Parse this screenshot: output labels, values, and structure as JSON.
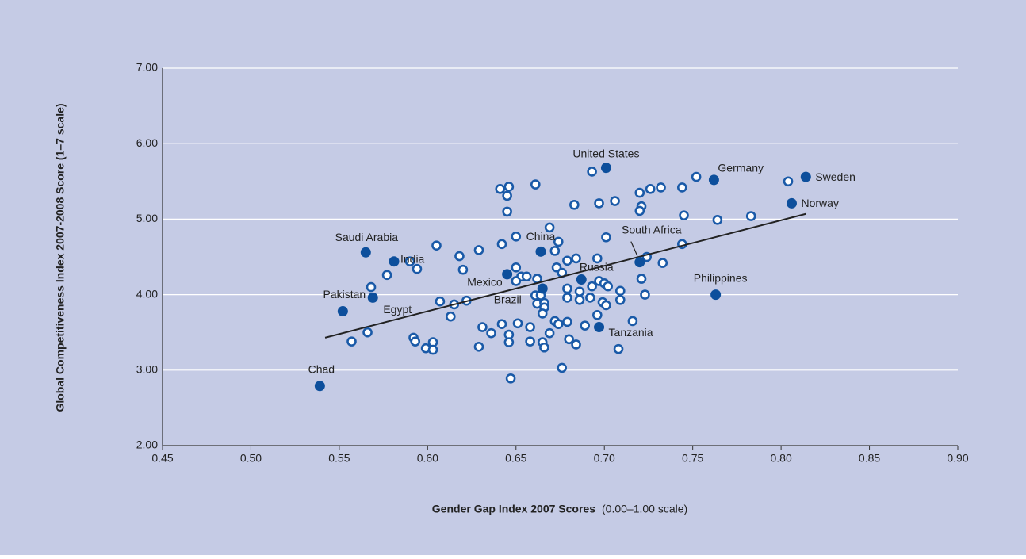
{
  "chart_data": {
    "type": "scatter",
    "xlabel": "Gender Gap Index 2007 Scores",
    "xlabel_note": "(0.00–1.00 scale)",
    "ylabel": "Global Competitiveness Index 2007-2008 Score (1–7 scale)",
    "xlim": [
      0.45,
      0.9
    ],
    "ylim": [
      2.0,
      7.0
    ],
    "xticks": [
      {
        "value": 0.45,
        "label": "0.45"
      },
      {
        "value": 0.5,
        "label": "0.50"
      },
      {
        "value": 0.55,
        "label": "0.55"
      },
      {
        "value": 0.6,
        "label": "0.60"
      },
      {
        "value": 0.65,
        "label": "0.65"
      },
      {
        "value": 0.7,
        "label": "0.70"
      },
      {
        "value": 0.75,
        "label": "0.75"
      },
      {
        "value": 0.8,
        "label": "0.80"
      },
      {
        "value": 0.85,
        "label": "0.85"
      },
      {
        "value": 0.9,
        "label": "0.90"
      }
    ],
    "yticks": [
      {
        "value": 2,
        "label": "2.00"
      },
      {
        "value": 3,
        "label": "3.00"
      },
      {
        "value": 4,
        "label": "4.00"
      },
      {
        "value": 5,
        "label": "5.00"
      },
      {
        "value": 6,
        "label": "6.00"
      },
      {
        "value": 7,
        "label": "7.00"
      }
    ],
    "grid": true,
    "background": "#c5cbe5",
    "labeled_points": {
      "color": "#0d4f9c",
      "labels": [
        "United States",
        "Germany",
        "Sweden",
        "Norway",
        "Saudi Arabia",
        "India",
        "China",
        "Mexico",
        "Brazil",
        "Russia",
        "South Africa",
        "Philippines",
        "Tanzania",
        "Pakistan",
        "Egypt",
        "Chad"
      ],
      "x": [
        0.701,
        0.762,
        0.814,
        0.806,
        0.565,
        0.581,
        0.664,
        0.645,
        0.665,
        0.687,
        0.72,
        0.763,
        0.697,
        0.552,
        0.569,
        0.539
      ],
      "y": [
        5.68,
        5.52,
        5.56,
        5.21,
        4.56,
        4.44,
        4.57,
        4.27,
        4.08,
        4.2,
        4.43,
        4.0,
        3.57,
        3.78,
        3.96,
        2.79
      ]
    },
    "points": {
      "color": "#1a5aa8",
      "x": [
        0.641,
        0.646,
        0.645,
        0.645,
        0.661,
        0.693,
        0.683,
        0.697,
        0.706,
        0.72,
        0.721,
        0.72,
        0.726,
        0.732,
        0.752,
        0.744,
        0.804,
        0.745,
        0.764,
        0.783,
        0.701,
        0.669,
        0.674,
        0.605,
        0.629,
        0.642,
        0.65,
        0.672,
        0.618,
        0.62,
        0.59,
        0.594,
        0.577,
        0.568,
        0.65,
        0.653,
        0.656,
        0.65,
        0.662,
        0.673,
        0.676,
        0.679,
        0.684,
        0.696,
        0.697,
        0.7,
        0.702,
        0.693,
        0.679,
        0.686,
        0.679,
        0.686,
        0.692,
        0.699,
        0.701,
        0.709,
        0.709,
        0.721,
        0.723,
        0.724,
        0.733,
        0.744,
        0.696,
        0.661,
        0.662,
        0.666,
        0.666,
        0.664,
        0.665,
        0.607,
        0.615,
        0.622,
        0.613,
        0.672,
        0.674,
        0.679,
        0.689,
        0.716,
        0.631,
        0.636,
        0.642,
        0.651,
        0.658,
        0.646,
        0.646,
        0.658,
        0.669,
        0.665,
        0.666,
        0.68,
        0.684,
        0.708,
        0.629,
        0.592,
        0.593,
        0.599,
        0.603,
        0.603,
        0.557,
        0.566,
        0.647,
        0.676
      ],
      "y": [
        5.4,
        5.43,
        5.31,
        5.1,
        5.46,
        5.63,
        5.19,
        5.21,
        5.24,
        5.35,
        5.17,
        5.11,
        5.4,
        5.42,
        5.56,
        5.42,
        5.5,
        5.05,
        4.99,
        5.04,
        4.76,
        4.89,
        4.7,
        4.65,
        4.59,
        4.67,
        4.77,
        4.58,
        4.51,
        4.33,
        4.44,
        4.34,
        4.26,
        4.1,
        4.36,
        4.24,
        4.24,
        4.18,
        4.21,
        4.36,
        4.29,
        4.45,
        4.48,
        4.48,
        4.18,
        4.15,
        4.11,
        4.11,
        4.08,
        4.04,
        3.96,
        3.93,
        3.96,
        3.9,
        3.86,
        4.05,
        3.93,
        4.21,
        4.0,
        4.5,
        4.42,
        4.67,
        3.73,
        3.99,
        3.88,
        3.89,
        3.83,
        3.99,
        3.75,
        3.91,
        3.87,
        3.92,
        3.71,
        3.65,
        3.61,
        3.64,
        3.59,
        3.65,
        3.57,
        3.49,
        3.61,
        3.62,
        3.57,
        3.47,
        3.37,
        3.38,
        3.49,
        3.37,
        3.3,
        3.41,
        3.34,
        3.28,
        3.31,
        3.43,
        3.38,
        3.29,
        3.37,
        3.27,
        3.38,
        3.5,
        2.89,
        3.03
      ]
    },
    "trendline": {
      "color": "#222222",
      "x": [
        0.542,
        0.814
      ],
      "y": [
        3.43,
        5.07
      ]
    }
  }
}
